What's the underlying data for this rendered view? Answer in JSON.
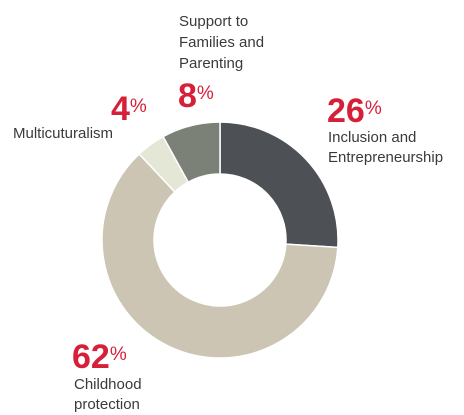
{
  "chart_data": {
    "type": "pie",
    "donut": true,
    "title": "",
    "slices": [
      {
        "label_lines": [
          "Inclusion and",
          "Entrepreneurship"
        ],
        "value": 26,
        "value_text": "26",
        "unit": "%",
        "color": "#4d5155"
      },
      {
        "label_lines": [
          "Childhood",
          "protection"
        ],
        "value": 62,
        "value_text": "62",
        "unit": "%",
        "color": "#cdc5b4"
      },
      {
        "label_lines": [
          "Multicuturalism"
        ],
        "value": 4,
        "value_text": "4",
        "unit": "%",
        "color": "#e4e6d6"
      },
      {
        "label_lines": [
          "Support to",
          "Families and",
          "Parenting"
        ],
        "value": 8,
        "value_text": "8",
        "unit": "%",
        "color": "#7c8177"
      }
    ],
    "value_color": "#d6203a",
    "label_color": "#3a3a3a"
  }
}
